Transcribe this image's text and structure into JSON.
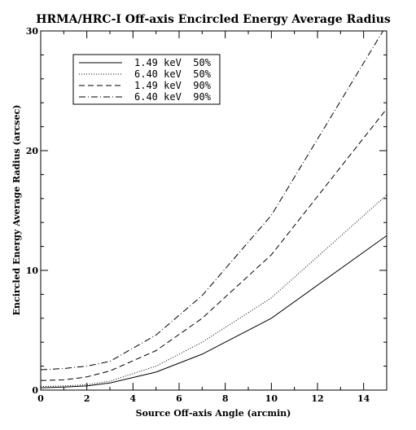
{
  "chart_data": {
    "type": "line",
    "title": "HRMA/HRC-I Off-axis Encircled Energy Average Radius",
    "xlabel": "Source Off-axis Angle (arcmin)",
    "ylabel": "Encircled Energy Average Radius (arcsec)",
    "xlim": [
      0,
      15
    ],
    "ylim": [
      0,
      30
    ],
    "xticks": [
      0,
      2,
      4,
      6,
      8,
      10,
      12,
      14
    ],
    "yticks": [
      0,
      10,
      20,
      30
    ],
    "grid": false,
    "legend_position": "top-left",
    "series": [
      {
        "name": "1.49 keV  50%",
        "style": "solid",
        "x": [
          0,
          1,
          2,
          3,
          5,
          7,
          10,
          15
        ],
        "y": [
          0.2,
          0.25,
          0.35,
          0.6,
          1.5,
          3.0,
          6.0,
          12.9
        ]
      },
      {
        "name": "6.40 keV  50%",
        "style": "dotted",
        "x": [
          0,
          1,
          2,
          3,
          5,
          7,
          10,
          15
        ],
        "y": [
          0.3,
          0.35,
          0.45,
          0.75,
          2.0,
          4.0,
          7.7,
          16.3
        ]
      },
      {
        "name": "1.49 keV  90%",
        "style": "dashed",
        "x": [
          0,
          1,
          2,
          3,
          5,
          7,
          10,
          15
        ],
        "y": [
          0.8,
          0.85,
          1.1,
          1.6,
          3.3,
          6.0,
          11.3,
          23.5
        ]
      },
      {
        "name": "6.40 keV  90%",
        "style": "dashdot",
        "x": [
          0,
          1,
          2,
          3,
          5,
          7,
          10,
          15
        ],
        "y": [
          1.7,
          1.8,
          2.0,
          2.4,
          4.6,
          7.9,
          14.6,
          30.5
        ]
      }
    ]
  }
}
